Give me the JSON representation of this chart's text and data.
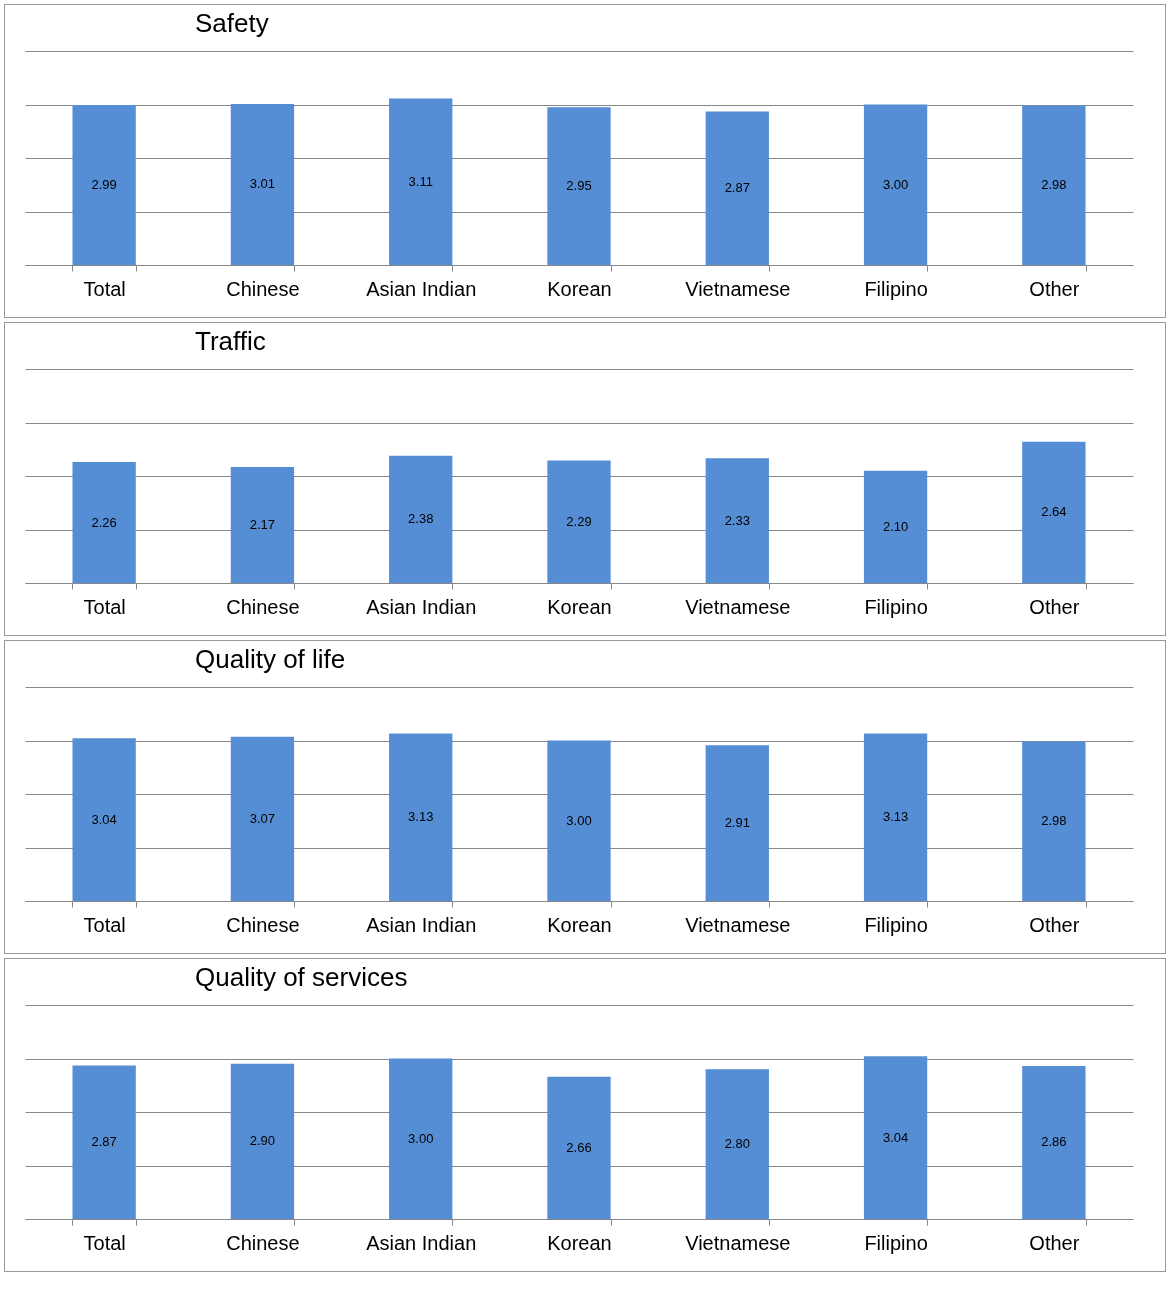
{
  "chart_data": [
    {
      "type": "bar",
      "title": "Safety",
      "categories": [
        "Total",
        "Chinese",
        "Asian Indian",
        "Korean",
        "Vietnamese",
        "Filipino",
        "Other"
      ],
      "values": [
        2.99,
        3.01,
        3.11,
        2.95,
        2.87,
        3.0,
        2.98
      ],
      "value_labels": [
        "2.99",
        "3.01",
        "3.11",
        "2.95",
        "2.87",
        "3.00",
        "2.98"
      ],
      "color": "#558ed5",
      "ylim": [
        0,
        4
      ],
      "grid": "y",
      "tick_labels": "x"
    },
    {
      "type": "bar",
      "title": "Traffic",
      "categories": [
        "Total",
        "Chinese",
        "Asian Indian",
        "Korean",
        "Vietnamese",
        "Filipino",
        "Other"
      ],
      "values": [
        2.26,
        2.17,
        2.38,
        2.29,
        2.33,
        2.1,
        2.64
      ],
      "value_labels": [
        "2.26",
        "2.17",
        "2.38",
        "2.29",
        "2.33",
        "2.10",
        "2.64"
      ],
      "color": "#558ed5",
      "ylim": [
        0,
        4
      ],
      "grid": "y",
      "tick_labels": "x"
    },
    {
      "type": "bar",
      "title": "Quality of life",
      "categories": [
        "Total",
        "Chinese",
        "Asian Indian",
        "Korean",
        "Vietnamese",
        "Filipino",
        "Other"
      ],
      "values": [
        3.04,
        3.07,
        3.13,
        3.0,
        2.91,
        3.13,
        2.98
      ],
      "value_labels": [
        "3.04",
        "3.07",
        "3.13",
        "3.00",
        "2.91",
        "3.13",
        "2.98"
      ],
      "color": "#558ed5",
      "ylim": [
        0,
        4
      ],
      "grid": "y",
      "tick_labels": "x"
    },
    {
      "type": "bar",
      "title": "Quality of services",
      "categories": [
        "Total",
        "Chinese",
        "Asian Indian",
        "Korean",
        "Vietnamese",
        "Filipino",
        "Other"
      ],
      "values": [
        2.87,
        2.9,
        3.0,
        2.66,
        2.8,
        3.04,
        2.86
      ],
      "value_labels": [
        "2.87",
        "2.90",
        "3.00",
        "2.66",
        "2.80",
        "3.04",
        "2.86"
      ],
      "color": "#558ed5",
      "ylim": [
        0,
        4
      ],
      "grid": "y",
      "tick_labels": "x"
    }
  ]
}
